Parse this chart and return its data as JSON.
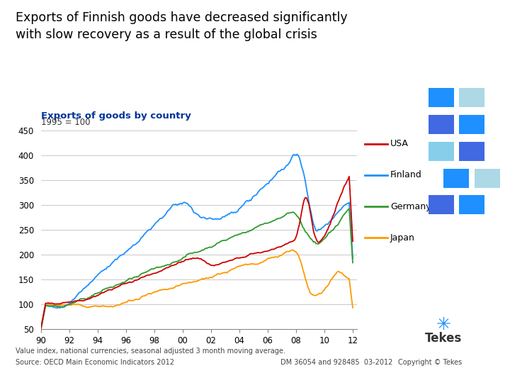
{
  "title": "Exports of Finnish goods have decreased significantly\nwith slow recovery as a result of the global crisis",
  "subtitle": "Exports of goods by country",
  "ylabel_note": "1995 = 100",
  "colors": {
    "USA": "#cc0000",
    "Finland": "#1e90ff",
    "Germany": "#339933",
    "Japan": "#ff9900"
  },
  "subtitle_color": "#003399",
  "title_color": "#000000",
  "background_color": "#ffffff",
  "footer_left1": "Value index, national currencies, seasonal adjusted 3 month moving average.",
  "footer_left2": "Source: OECD Main Economic Indicators 2012",
  "footer_center": "DM 36054 and 928485  03-2012",
  "footer_right": "Copyright © Tekes",
  "xticklabels": [
    "90",
    "92",
    "94",
    "96",
    "98",
    "00",
    "02",
    "04",
    "06",
    "08",
    "10",
    "12"
  ],
  "yticks": [
    50,
    100,
    150,
    200,
    250,
    300,
    350,
    400,
    450
  ]
}
